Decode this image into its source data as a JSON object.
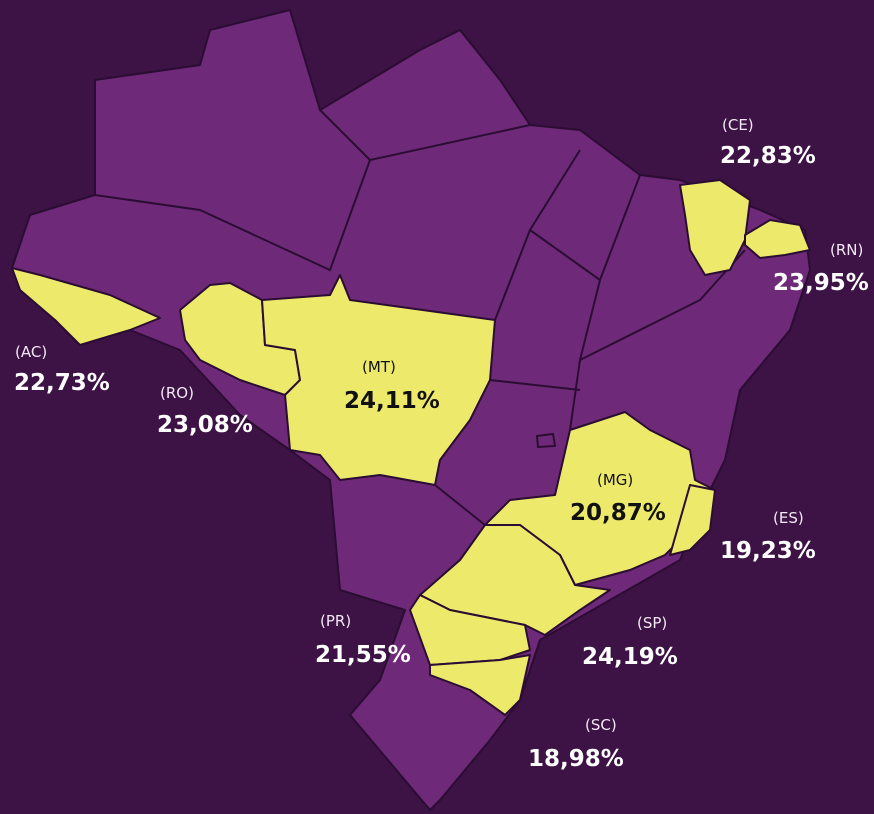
{
  "labels": [
    {
      "code": "(CE)",
      "value": "22,83%"
    },
    {
      "code": "(RN)",
      "value": "23,95%"
    },
    {
      "code": "(AC)",
      "value": "22,73%"
    },
    {
      "code": "(RO)",
      "value": "23,08%"
    },
    {
      "code": "(MT)",
      "value": "24,11%"
    },
    {
      "code": "(MG)",
      "value": "20,87%"
    },
    {
      "code": "(ES)",
      "value": "19,23%"
    },
    {
      "code": "(PR)",
      "value": "21,55%"
    },
    {
      "code": "(SP)",
      "value": "24,19%"
    },
    {
      "code": "(SC)",
      "value": "18,98%"
    }
  ]
}
